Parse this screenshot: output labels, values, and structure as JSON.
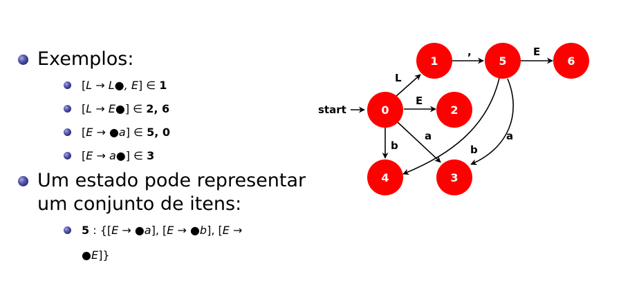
{
  "bullets": {
    "exemplos": "Exemplos:",
    "estado_line1": "Um estado pode representar",
    "estado_line2": "um conjunto de itens:"
  },
  "examples": [
    {
      "lhs": "L",
      "rhs": "L●, E",
      "states": "1"
    },
    {
      "lhs": "L",
      "rhs": "E●",
      "states": "2, 6"
    },
    {
      "lhs": "E",
      "rhs": "●a",
      "states": "5, 0"
    },
    {
      "lhs": "E",
      "rhs": "a●",
      "states": "3"
    }
  ],
  "state_set": {
    "state": "5",
    "line1_items": [
      {
        "lhs": "E",
        "rhs": "●a"
      },
      {
        "lhs": "E",
        "rhs": "●b"
      }
    ],
    "line1_tail_lhs": "E",
    "line2": "●E"
  },
  "symbols": {
    "arrow": "→",
    "member": "∈"
  },
  "diagram": {
    "start_label": "start",
    "node_color": "#ff0000",
    "nodes": [
      {
        "id": "0",
        "label": "0"
      },
      {
        "id": "1",
        "label": "1"
      },
      {
        "id": "2",
        "label": "2"
      },
      {
        "id": "3",
        "label": "3"
      },
      {
        "id": "4",
        "label": "4"
      },
      {
        "id": "5",
        "label": "5"
      },
      {
        "id": "6",
        "label": "6"
      }
    ],
    "edges": [
      {
        "from": "0",
        "to": "1",
        "label": "L"
      },
      {
        "from": "0",
        "to": "2",
        "label": "E"
      },
      {
        "from": "0",
        "to": "3",
        "label": "a"
      },
      {
        "from": "0",
        "to": "4",
        "label": "b"
      },
      {
        "from": "1",
        "to": "5",
        "label": ","
      },
      {
        "from": "5",
        "to": "6",
        "label": "E"
      },
      {
        "from": "5",
        "to": "4",
        "label": "b"
      },
      {
        "from": "5",
        "to": "3",
        "label": "a"
      }
    ]
  }
}
